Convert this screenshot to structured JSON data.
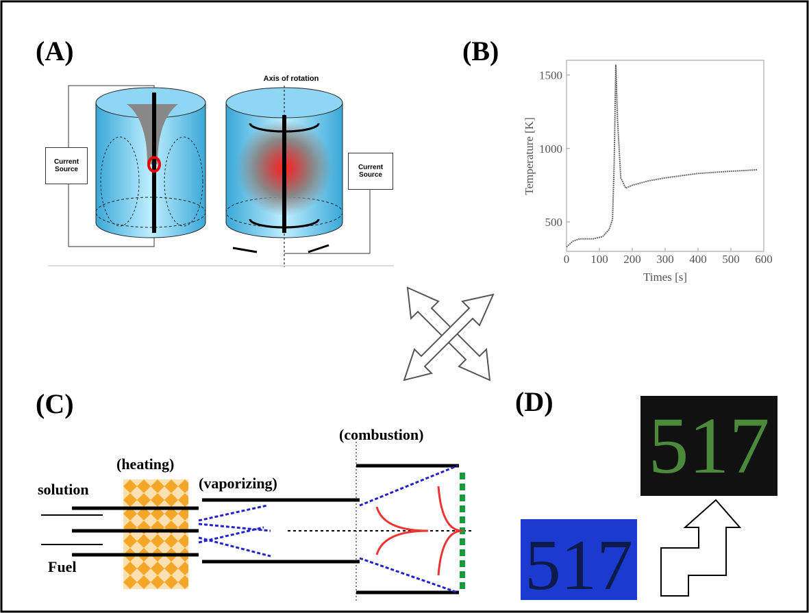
{
  "panels": {
    "a": {
      "label": "(A)",
      "axis_label": "Axis of rotation",
      "source_left": "Current Source",
      "source_right": "Current Source"
    },
    "b": {
      "label": "(B)"
    },
    "c": {
      "label": "(C)",
      "combustion": "(combustion)",
      "heating": "(heating)",
      "vaporizing": "(vaporizing)",
      "solution": "solution",
      "fuel": "Fuel"
    },
    "d": {
      "label": "(D)",
      "display_top": "517",
      "display_bottom": "517"
    }
  },
  "chart_data": {
    "type": "line",
    "x_label": "Times [s]",
    "y_label": "Temperature [K]",
    "x": [
      0,
      20,
      40,
      80,
      110,
      130,
      140,
      145,
      150,
      155,
      165,
      180,
      200,
      250,
      300,
      400,
      500,
      580
    ],
    "values": [
      330,
      370,
      385,
      385,
      400,
      450,
      520,
      900,
      1570,
      1200,
      800,
      730,
      750,
      780,
      800,
      830,
      845,
      855
    ],
    "color": "#666666",
    "xlim": [
      0,
      600
    ],
    "ylim": [
      300,
      1600
    ],
    "xticks": [
      0,
      100,
      200,
      300,
      400,
      500,
      600
    ],
    "yticks": [
      500,
      1000,
      1500
    ]
  }
}
